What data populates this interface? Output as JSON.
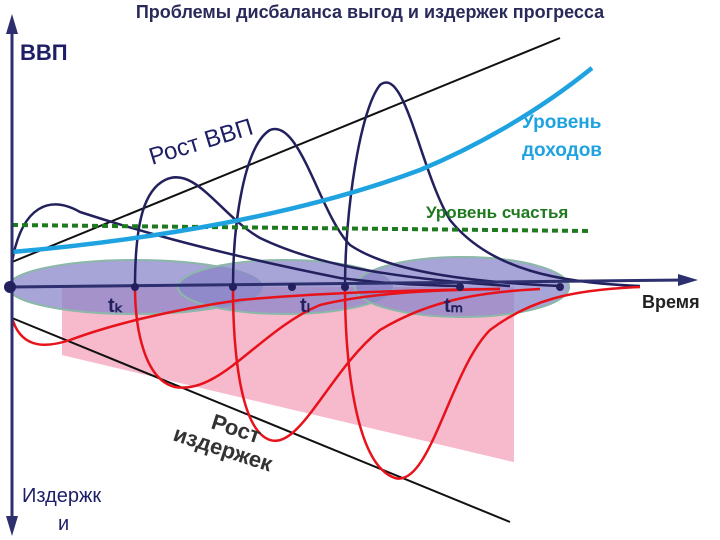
{
  "title": "Проблемы дисбаланса выгод и издержек прогресса",
  "labels": {
    "gdp_axis": "ВВП",
    "costs_axis_line1": "Издержк",
    "costs_axis_line2": "и",
    "time_axis": "Время",
    "gdp_growth": "Рост ВВП",
    "income_level_line1": "Уровень",
    "income_level_line2": "доходов",
    "happiness_level": "Уровень счастья",
    "cost_growth_line1": "Рост",
    "cost_growth_line2": "издержек",
    "tk": "tₖ",
    "tl": "tₗ",
    "tm": "tₘ"
  },
  "colors": {
    "axis": "#2d2f6e",
    "gdp_curves": "#23205e",
    "cost_curves": "#e8121b",
    "income": "#1fa3e0",
    "happiness": "#1f7a1f",
    "cost_area": "#f7b9cc",
    "ellipse_fill": "#8a86c9",
    "ellipse_stroke": "#8bb8a8",
    "income_label": "#1fa3e0",
    "happiness_label": "#1f7a1f",
    "gdp_label": "#1e1e66"
  }
}
